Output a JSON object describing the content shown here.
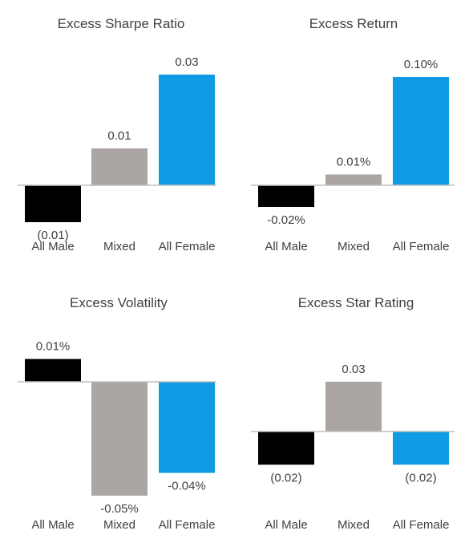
{
  "colors": {
    "all_male": "#000000",
    "mixed": "#ABA6A4",
    "all_female": "#0E9BE3",
    "axis": "#BFBFBF",
    "text": "#404040"
  },
  "chart_data": [
    {
      "type": "bar",
      "title": "Excess Sharpe Ratio",
      "categories": [
        "All Male",
        "Mixed",
        "All Female"
      ],
      "values": [
        -0.01,
        0.01,
        0.03
      ],
      "data_labels": [
        "(0.01)",
        "0.01",
        "0.03"
      ],
      "ylim": [
        -0.01,
        0.03
      ],
      "grid": false,
      "legend": "none"
    },
    {
      "type": "bar",
      "title": "Excess Return",
      "categories": [
        "All Male",
        "Mixed",
        "All Female"
      ],
      "values": [
        -0.02,
        0.01,
        0.1
      ],
      "data_labels": [
        "-0.02%",
        "0.01%",
        "0.10%"
      ],
      "unit": "%",
      "ylim": [
        -0.02,
        0.1
      ],
      "grid": false,
      "legend": "none"
    },
    {
      "type": "bar",
      "title": "Excess Volatility",
      "categories": [
        "All Male",
        "Mixed",
        "All Female"
      ],
      "values": [
        0.01,
        -0.05,
        -0.04
      ],
      "data_labels": [
        "0.01%",
        "-0.05%",
        "-0.04%"
      ],
      "unit": "%",
      "ylim": [
        -0.05,
        0.01
      ],
      "grid": false,
      "legend": "none"
    },
    {
      "type": "bar",
      "title": "Excess Star Rating",
      "categories": [
        "All Male",
        "Mixed",
        "All Female"
      ],
      "values": [
        -0.02,
        0.03,
        -0.02
      ],
      "data_labels": [
        "(0.02)",
        "0.03",
        "(0.02)"
      ],
      "ylim": [
        -0.02,
        0.03
      ],
      "grid": false,
      "legend": "none"
    }
  ]
}
